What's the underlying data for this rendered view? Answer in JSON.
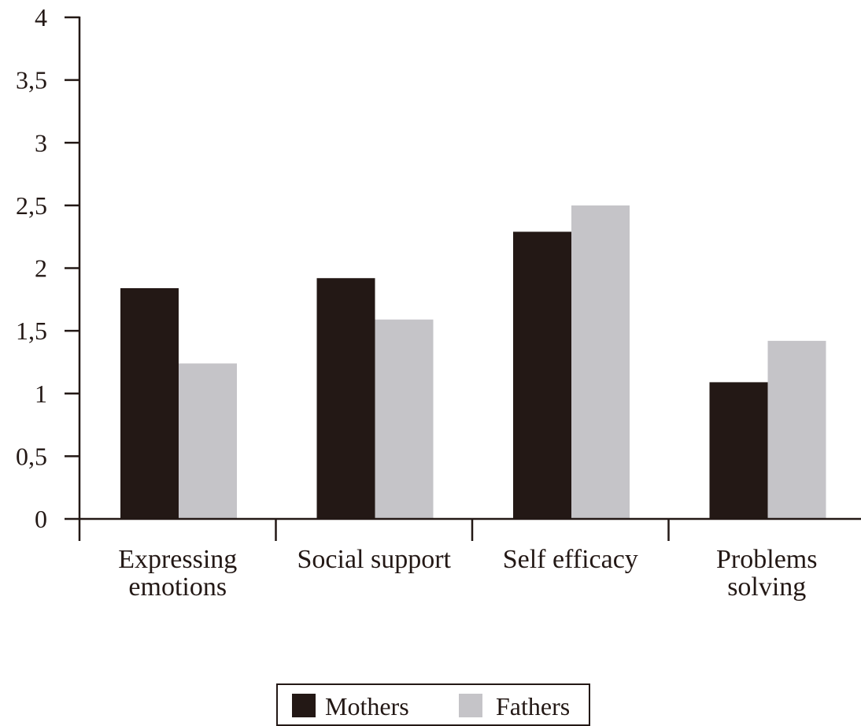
{
  "chart_data": {
    "type": "bar",
    "categories": [
      [
        "Expressing",
        "emotions"
      ],
      [
        "Social support"
      ],
      [
        "Self efficacy"
      ],
      [
        "Problems",
        "solving"
      ]
    ],
    "series": [
      {
        "name": "Mothers",
        "color": "#231815",
        "values": [
          1.84,
          1.92,
          2.29,
          1.09
        ]
      },
      {
        "name": "Fathers",
        "color": "#c5c4c8",
        "values": [
          1.24,
          1.59,
          2.5,
          1.42
        ]
      }
    ],
    "ylim": [
      0,
      4
    ],
    "yticks": [
      0,
      0.5,
      1,
      1.5,
      2,
      2.5,
      3,
      3.5,
      4
    ],
    "ytick_labels": [
      "0",
      "0,5",
      "1",
      "1,5",
      "2",
      "2,5",
      "3",
      "3,5",
      "4"
    ],
    "legend_position": "bottom-center",
    "grid": false
  }
}
